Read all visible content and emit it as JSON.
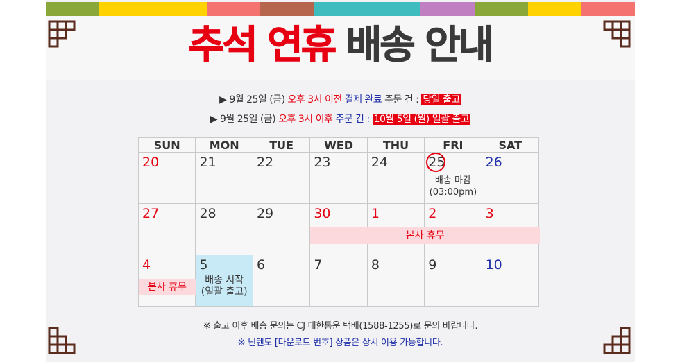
{
  "stripe_colors": [
    "#8aa83a",
    "#ffd200",
    "#ffd200",
    "#f47370",
    "#b5664d",
    "#3fbcbd",
    "#3fbcbd",
    "#c07fc0",
    "#8aa83a",
    "#ffd200",
    "#f47370"
  ],
  "title": {
    "part1": "추석 연휴",
    "part2": "배송 안내",
    "red": "#e60012",
    "dark": "#3a3a3a"
  },
  "notice1": {
    "prefix": "▶ 9월 25일 (금) ",
    "red": "오후 3시 이전",
    "blue": "결제 완료",
    "mid": " 주문 건 : ",
    "badge": "당일 출고"
  },
  "notice2": {
    "prefix": "▶ 9월 25일 (금) ",
    "red": "오후 3시 이후",
    "blue": " 주문 건 : ",
    "badge": "10월 5일 (월) 일괄 출고"
  },
  "calendar": {
    "headers": [
      "SUN",
      "MON",
      "TUE",
      "WED",
      "THU",
      "FRI",
      "SAT"
    ],
    "week1": [
      "20",
      "21",
      "22",
      "23",
      "24",
      "25",
      "26"
    ],
    "week2": [
      "27",
      "28",
      "29",
      "30",
      "1",
      "2",
      "3"
    ],
    "week3": [
      "4",
      "5",
      "6",
      "7",
      "8",
      "9",
      "10"
    ],
    "deadline_note": {
      "line1": "배송 마감",
      "line2": "(03:00pm)"
    },
    "holiday_bar": "본사 휴무",
    "holiday_sun": "본사 휴무",
    "shipping_start": {
      "line1": "배송 시작",
      "line2": "(일괄 출고)"
    }
  },
  "footer": {
    "line1": "※ 출고 이후 배송 문의는 CJ 대한통운 택배(1588-1255)로 문의 바랍니다.",
    "line2": "※ 닌텐도 [다운로드 번호] 상품은 상시 이용 가능합니다."
  }
}
